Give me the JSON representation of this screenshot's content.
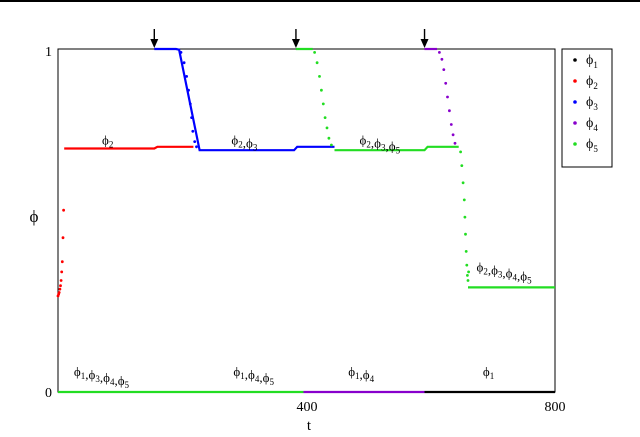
{
  "chart_data": {
    "type": "line",
    "xlabel": "t",
    "ylabel": "ϕ",
    "xlim": [
      0,
      800
    ],
    "ylim": [
      0,
      1
    ],
    "x_ticks": [
      "400",
      "800"
    ],
    "y_ticks": [
      "0",
      "1"
    ],
    "legend": {
      "placement": "top-right",
      "entries": [
        {
          "base": "ϕ",
          "sub": "1",
          "color": "#000000"
        },
        {
          "base": "ϕ",
          "sub": "2",
          "color": "#ff0000"
        },
        {
          "base": "ϕ",
          "sub": "3",
          "color": "#0000ff"
        },
        {
          "base": "ϕ",
          "sub": "4",
          "color": "#8800cc"
        },
        {
          "base": "ϕ",
          "sub": "5",
          "color": "#22dd22"
        }
      ]
    },
    "arrows_x": [
      155,
      383,
      590
    ],
    "annotations": [
      {
        "text": "ϕ2",
        "parts": [
          [
            "ϕ",
            "2"
          ]
        ],
        "x": 80,
        "y": 0.71
      },
      {
        "text": "ϕ2,ϕ3",
        "parts": [
          [
            "ϕ",
            "2"
          ],
          [
            "ϕ",
            "3"
          ]
        ],
        "x": 300,
        "y": 0.71
      },
      {
        "text": "ϕ2,ϕ3,ϕ5",
        "parts": [
          [
            "ϕ",
            "2"
          ],
          [
            "ϕ",
            "3"
          ],
          [
            "ϕ",
            "5"
          ]
        ],
        "x": 518,
        "y": 0.71
      },
      {
        "text": "ϕ2,ϕ3,ϕ4,ϕ5",
        "parts": [
          [
            "ϕ",
            "2"
          ],
          [
            "ϕ",
            "3"
          ],
          [
            "ϕ",
            "4"
          ],
          [
            "ϕ",
            "5"
          ]
        ],
        "x": 718,
        "y": 0.34
      },
      {
        "text": "ϕ1,ϕ3,ϕ4,ϕ5",
        "parts": [
          [
            "ϕ",
            "1"
          ],
          [
            "ϕ",
            "3"
          ],
          [
            "ϕ",
            "4"
          ],
          [
            "ϕ",
            "5"
          ]
        ],
        "x": 70,
        "y": 0.035
      },
      {
        "text": "ϕ1,ϕ4,ϕ5",
        "parts": [
          [
            "ϕ",
            "1"
          ],
          [
            "ϕ",
            "4"
          ],
          [
            "ϕ",
            "5"
          ]
        ],
        "x": 315,
        "y": 0.035
      },
      {
        "text": "ϕ1,ϕ4",
        "parts": [
          [
            "ϕ",
            "1"
          ],
          [
            "ϕ",
            "4"
          ]
        ],
        "x": 488,
        "y": 0.035
      },
      {
        "text": "ϕ1",
        "parts": [
          [
            "ϕ",
            "1"
          ]
        ],
        "x": 693,
        "y": 0.035
      }
    ],
    "series": [
      {
        "name": "ϕ1",
        "color": "#000000",
        "style": "line",
        "points": [
          [
            590,
            0
          ],
          [
            800,
            0
          ]
        ]
      },
      {
        "name": "ϕ2",
        "color": "#ff0000",
        "style": "line",
        "points": [
          [
            10,
            0.71
          ],
          [
            155,
            0.71
          ],
          [
            160,
            0.715
          ],
          [
            218,
            0.715
          ]
        ]
      },
      {
        "name": "ϕ2 rise",
        "color": "#ff0000",
        "style": "dots",
        "points": [
          [
            0,
            0.28
          ],
          [
            1,
            0.285
          ],
          [
            2,
            0.29
          ],
          [
            3,
            0.3
          ],
          [
            4,
            0.31
          ],
          [
            5,
            0.325
          ],
          [
            6,
            0.35
          ],
          [
            7,
            0.38
          ],
          [
            8,
            0.45
          ],
          [
            9,
            0.53
          ]
        ]
      },
      {
        "name": "ϕ3",
        "color": "#0000ff",
        "style": "line",
        "points": [
          [
            155,
            1
          ],
          [
            190,
            1
          ],
          [
            195,
            0.998
          ],
          [
            228,
            0.705
          ],
          [
            380,
            0.705
          ],
          [
            385,
            0.715
          ],
          [
            445,
            0.715
          ]
        ]
      },
      {
        "name": "ϕ3 fall",
        "color": "#0000ff",
        "style": "dots",
        "points": [
          [
            198,
            0.99
          ],
          [
            203,
            0.96
          ],
          [
            207,
            0.92
          ],
          [
            210,
            0.88
          ],
          [
            213,
            0.84
          ],
          [
            215,
            0.8
          ],
          [
            217,
            0.76
          ],
          [
            220,
            0.73
          ],
          [
            223,
            0.715
          ]
        ]
      },
      {
        "name": "ϕ4",
        "color": "#8800cc",
        "style": "line",
        "points": [
          [
            395,
            0
          ],
          [
            590,
            0
          ]
        ]
      },
      {
        "name": "ϕ4 top",
        "color": "#8800cc",
        "style": "line",
        "points": [
          [
            590,
            1
          ],
          [
            610,
            1
          ]
        ]
      },
      {
        "name": "ϕ4 fall",
        "color": "#8800cc",
        "style": "dots",
        "points": [
          [
            614,
            0.99
          ],
          [
            618,
            0.97
          ],
          [
            621,
            0.94
          ],
          [
            624,
            0.9
          ],
          [
            627,
            0.86
          ],
          [
            630,
            0.82
          ],
          [
            633,
            0.78
          ],
          [
            636,
            0.75
          ],
          [
            639,
            0.725
          ]
        ]
      },
      {
        "name": "ϕ5",
        "color": "#22dd22",
        "style": "line",
        "points": [
          [
            0,
            0
          ],
          [
            395,
            0
          ]
        ]
      },
      {
        "name": "ϕ5 top",
        "color": "#22dd22",
        "style": "line",
        "points": [
          [
            383,
            1
          ],
          [
            410,
            1
          ]
        ]
      },
      {
        "name": "ϕ5 mid",
        "color": "#22dd22",
        "style": "line",
        "points": [
          [
            445,
            0.705
          ],
          [
            590,
            0.705
          ],
          [
            595,
            0.715
          ],
          [
            645,
            0.715
          ]
        ]
      },
      {
        "name": "ϕ5 low",
        "color": "#22dd22",
        "style": "line",
        "points": [
          [
            660,
            0.305
          ],
          [
            800,
            0.305
          ]
        ]
      },
      {
        "name": "ϕ5 fall",
        "color": "#22dd22",
        "style": "dots",
        "points": [
          [
            413,
            0.99
          ],
          [
            417,
            0.96
          ],
          [
            421,
            0.92
          ],
          [
            424,
            0.88
          ],
          [
            427,
            0.84
          ],
          [
            430,
            0.8
          ],
          [
            433,
            0.77
          ],
          [
            436,
            0.74
          ],
          [
            440,
            0.72
          ]
        ]
      },
      {
        "name": "ϕ5 drop",
        "color": "#22dd22",
        "style": "dots",
        "points": [
          [
            648,
            0.7
          ],
          [
            650,
            0.66
          ],
          [
            652,
            0.61
          ],
          [
            654,
            0.56
          ],
          [
            655,
            0.51
          ],
          [
            656,
            0.46
          ],
          [
            657,
            0.41
          ],
          [
            658,
            0.37
          ],
          [
            659,
            0.34
          ],
          [
            660,
            0.325
          ],
          [
            661,
            0.35
          ]
        ]
      }
    ]
  }
}
